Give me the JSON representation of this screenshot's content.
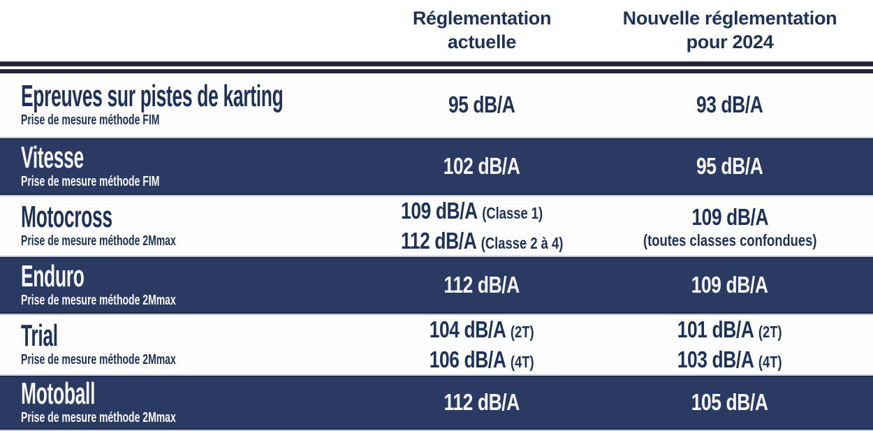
{
  "header": {
    "current_line1": "Réglementation",
    "current_line2": "actuelle",
    "new_line1": "Nouvelle réglementation",
    "new_line2": "pour 2024"
  },
  "rows": [
    {
      "title": "Epreuves sur pistes de karting",
      "subtitle": "Prise de mesure méthode FIM",
      "style": "light",
      "current": [
        {
          "value": "95 dB/A"
        }
      ],
      "new": [
        {
          "value": "93 dB/A"
        }
      ]
    },
    {
      "title": "Vitesse",
      "subtitle": "Prise de mesure méthode FIM",
      "style": "dark",
      "current": [
        {
          "value": "102 dB/A"
        }
      ],
      "new": [
        {
          "value": "95 dB/A"
        }
      ]
    },
    {
      "title": "Motocross",
      "subtitle": "Prise de mesure méthode 2Mmax",
      "style": "light",
      "current": [
        {
          "value": "109 dB/A",
          "note": "(Classe 1)"
        },
        {
          "value": "112 dB/A",
          "note": "(Classe 2 à 4)"
        }
      ],
      "new": [
        {
          "value": "109 dB/A",
          "note_below": "(toutes classes confondues)"
        }
      ]
    },
    {
      "title": "Enduro",
      "subtitle": "Prise de mesure méthode 2Mmax",
      "style": "dark",
      "current": [
        {
          "value": "112 dB/A"
        }
      ],
      "new": [
        {
          "value": "109 dB/A"
        }
      ]
    },
    {
      "title": "Trial",
      "subtitle": "Prise de mesure méthode 2Mmax",
      "style": "light",
      "current": [
        {
          "value": "104 dB/A",
          "note": "(2T)"
        },
        {
          "value": "106 dB/A",
          "note": "(4T)"
        }
      ],
      "new": [
        {
          "value": "101 dB/A",
          "note": "(2T)"
        },
        {
          "value": "103 dB/A",
          "note": "(4T)"
        }
      ]
    },
    {
      "title": "Motoball",
      "subtitle": "Prise de mesure méthode 2Mmax",
      "style": "dark",
      "current": [
        {
          "value": "112 dB/A"
        }
      ],
      "new": [
        {
          "value": "105 dB/A"
        }
      ]
    }
  ],
  "colors": {
    "navy_text": "#1e3157",
    "dark_row_bg": "#2b3a63",
    "separator_bar": "#272337",
    "light_row_bg": "#fdfdfe",
    "dark_row_text": "#f7f8fb"
  },
  "unit": "dB/A",
  "chart_data": {
    "type": "table",
    "columns": [
      "Discipline",
      "Réglementation actuelle",
      "Nouvelle réglementation pour 2024"
    ],
    "rows": [
      [
        "Epreuves sur pistes de karting — Prise de mesure méthode FIM",
        "95 dB/A",
        "93 dB/A"
      ],
      [
        "Vitesse — Prise de mesure méthode FIM",
        "102 dB/A",
        "95 dB/A"
      ],
      [
        "Motocross — Prise de mesure méthode 2Mmax",
        "109 dB/A (Classe 1); 112 dB/A (Classe 2 à 4)",
        "109 dB/A (toutes classes confondues)"
      ],
      [
        "Enduro — Prise de mesure méthode 2Mmax",
        "112 dB/A",
        "109 dB/A"
      ],
      [
        "Trial — Prise de mesure méthode 2Mmax",
        "104 dB/A (2T); 106 dB/A (4T)",
        "101 dB/A (2T); 103 dB/A (4T)"
      ],
      [
        "Motoball — Prise de mesure méthode 2Mmax",
        "112 dB/A",
        "105 dB/A"
      ]
    ],
    "unit": "dB/A"
  }
}
